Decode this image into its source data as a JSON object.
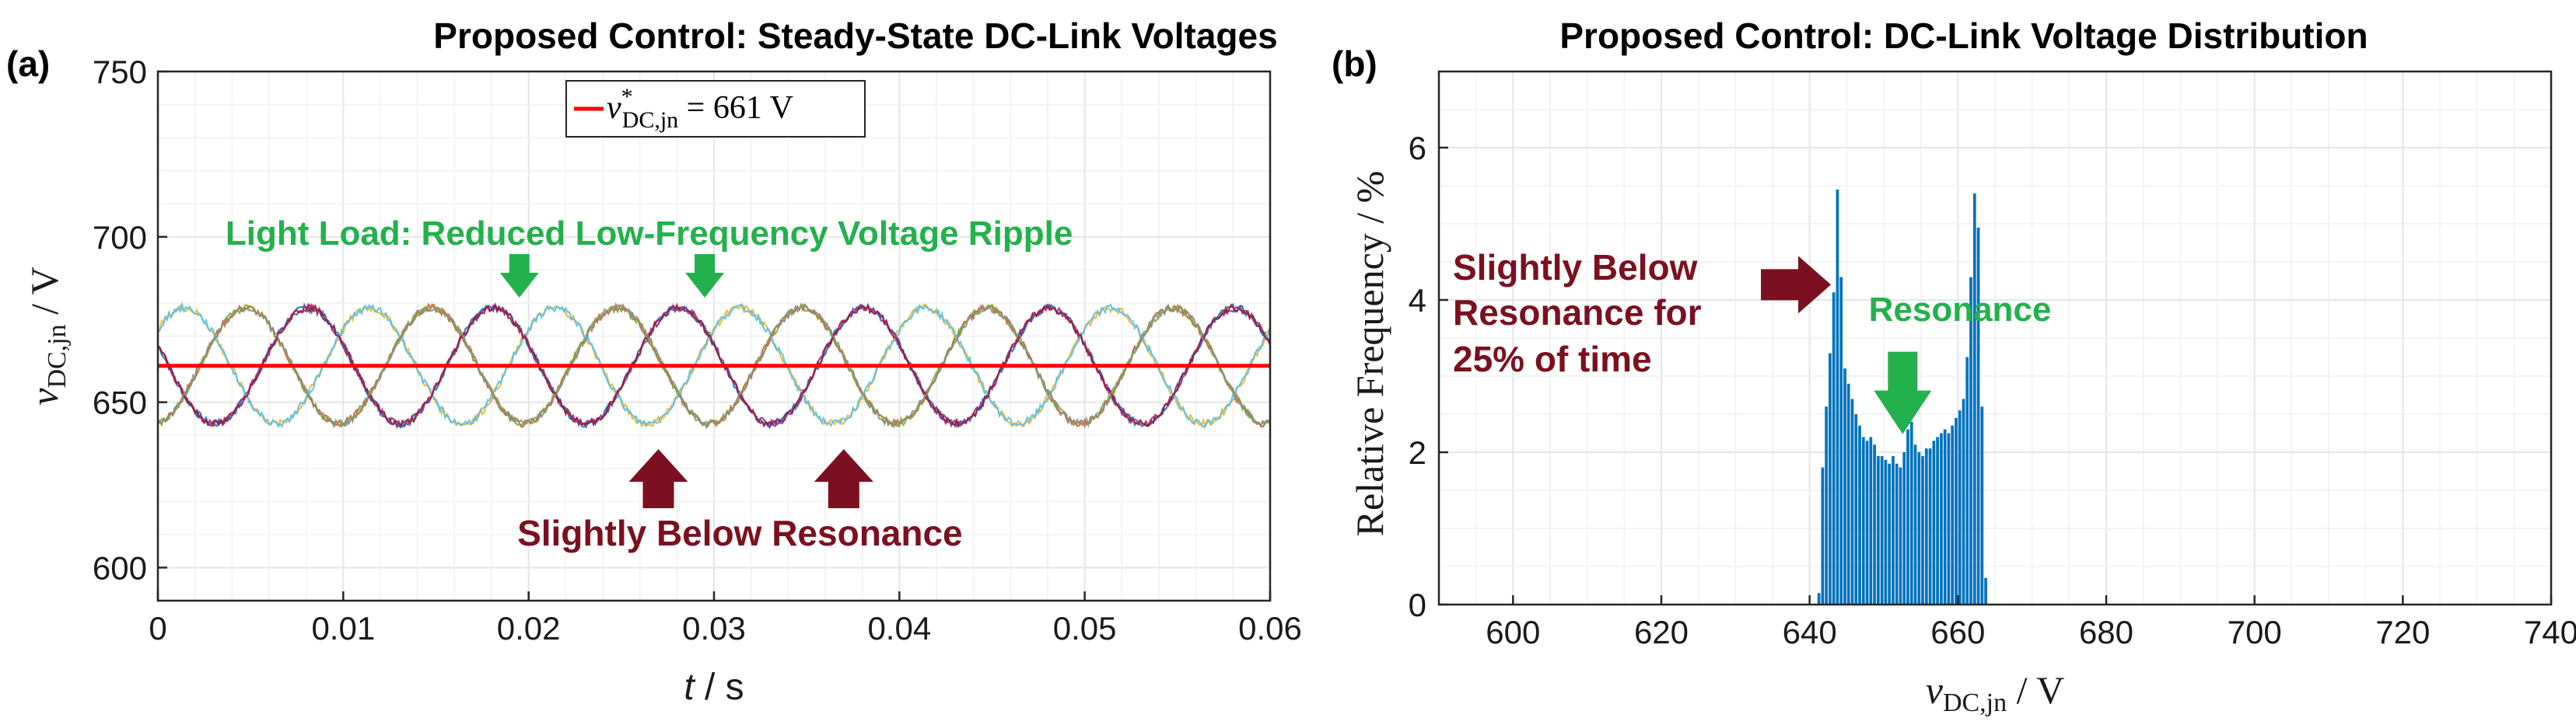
{
  "colors": {
    "setpoint": "#ff0000",
    "bars": "#0072bd",
    "green_ann": "#22b14c",
    "red_ann": "#7b1020",
    "phases": [
      "#0072bd",
      "#d95319",
      "#edb120",
      "#7e2f8e",
      "#77ac30",
      "#4dbeee",
      "#a2142f",
      "#888888"
    ]
  },
  "chart_data": [
    {
      "panel_label": "(a)",
      "type": "line",
      "title": "Proposed Control: Steady-State DC-Link Voltages",
      "xlabel_italic": "t",
      "xlabel_unit": " / s",
      "ylabel": "v",
      "ylabel_sub": "DC,jn",
      "ylabel_unit": " / V",
      "xlim": [
        0,
        0.06
      ],
      "ylim": [
        590,
        750
      ],
      "xticks": [
        0,
        0.01,
        0.02,
        0.03,
        0.04,
        0.05,
        0.06
      ],
      "xtick_labels": [
        "0",
        "0.01",
        "0.02",
        "0.03",
        "0.04",
        "0.05",
        "0.06"
      ],
      "yticks": [
        600,
        650,
        700,
        750
      ],
      "ytick_labels": [
        "600",
        "650",
        "700",
        "750"
      ],
      "grid": true,
      "legend_position": "top-center",
      "legend": {
        "label": "v",
        "sup": "*",
        "sub": "DC,jn",
        "rest": " = 661 V"
      },
      "setpoint": 661,
      "ripple": {
        "center": 661,
        "amplitude": 17.5,
        "period": 0.01,
        "phase_count": 3,
        "line_count": 8
      },
      "annotations": {
        "green_text": "Light Load: Reduced Low-Frequency Voltage Ripple",
        "green_arrows_x": [
          0.0195,
          0.0295
        ],
        "red_text": "Slightly Below Resonance",
        "red_arrows_x": [
          0.027,
          0.037
        ]
      }
    },
    {
      "panel_label": "(b)",
      "type": "bar",
      "title": "Proposed Control: DC-Link Voltage Distribution",
      "xlabel": "v",
      "xlabel_sub": "DC,jn",
      "xlabel_unit": " / V",
      "ylabel": "Relative Frequency / %",
      "xlim": [
        590,
        740
      ],
      "ylim": [
        0,
        7
      ],
      "xticks": [
        600,
        620,
        640,
        660,
        680,
        700,
        720,
        740
      ],
      "xtick_labels": [
        "600",
        "620",
        "640",
        "660",
        "680",
        "700",
        "720",
        "740"
      ],
      "yticks": [
        0,
        2,
        4,
        6
      ],
      "ytick_labels": [
        "0",
        "2",
        "4",
        "6"
      ],
      "grid": true,
      "bin_width": 0.5,
      "bin_start": 641.0,
      "values": [
        0.15,
        1.8,
        2.6,
        3.3,
        4.1,
        5.45,
        4.3,
        3.1,
        2.9,
        2.7,
        2.5,
        2.35,
        2.2,
        2.15,
        2.2,
        2.1,
        1.95,
        1.95,
        1.9,
        1.85,
        1.95,
        1.85,
        1.8,
        2.0,
        2.3,
        2.4,
        2.1,
        2.0,
        1.95,
        2.05,
        2.05,
        2.15,
        2.2,
        2.25,
        2.3,
        2.25,
        2.35,
        2.45,
        2.55,
        2.7,
        3.25,
        4.3,
        5.4,
        4.95,
        2.6,
        0.35
      ],
      "annotations": {
        "red_lines": [
          "Slightly Below",
          "Resonance for",
          "25% of time"
        ],
        "green_text": "Resonance",
        "red_arrow_tip": [
          643.5,
          4.2
        ],
        "green_arrow_tip": [
          651.5,
          2.3
        ]
      }
    }
  ]
}
